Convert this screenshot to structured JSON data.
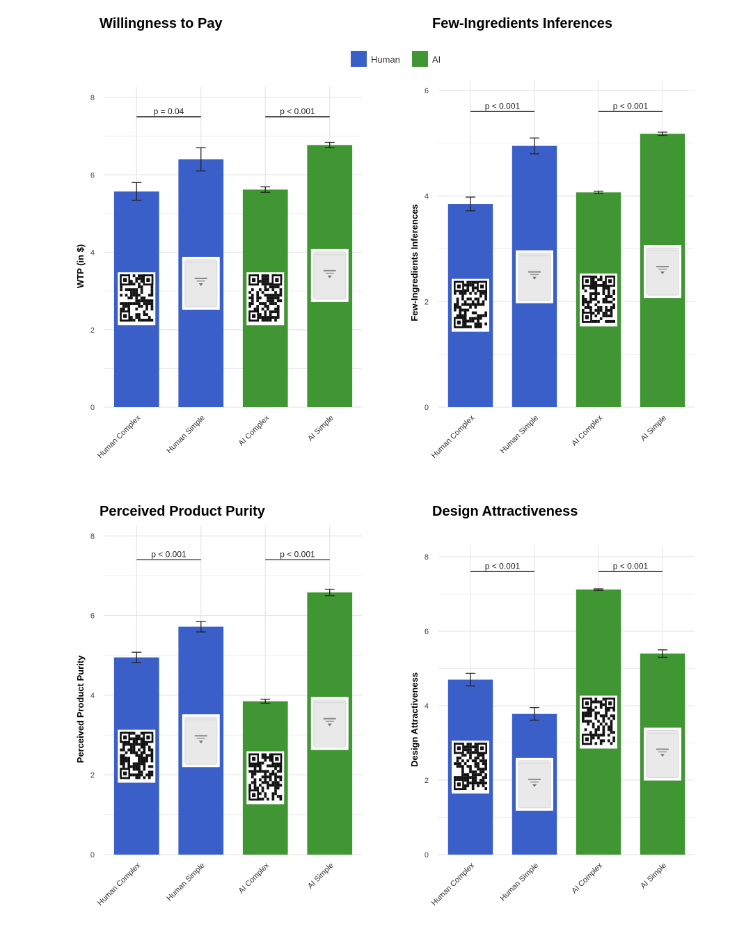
{
  "colors": {
    "human": "#3b5fc8",
    "ai": "#3f9632",
    "grid": "#e6e6e6",
    "errorbar": "#222222",
    "thumb_bg": "#ffffff",
    "pouch": "#e9e9e9"
  },
  "legend": {
    "entries": [
      {
        "name": "Human",
        "color_key": "human"
      },
      {
        "name": "AI",
        "color_key": "ai"
      }
    ]
  },
  "chart_data": [
    {
      "type": "bar",
      "title": "Willingness to Pay",
      "ylabel": "WTP (in $)",
      "xlabel": "",
      "ylim": [
        0,
        8
      ],
      "yticks": [
        0,
        2,
        4,
        6,
        8
      ],
      "categories": [
        "Human Complex",
        "Human Simple",
        "AI Complex",
        "AI Simple"
      ],
      "groups": [
        "Human",
        "Human",
        "AI",
        "AI"
      ],
      "values": [
        5.57,
        6.4,
        5.62,
        6.77
      ],
      "errors": [
        0.23,
        0.3,
        0.07,
        0.07
      ],
      "image_types": [
        "qr",
        "pouch",
        "qr",
        "pouch"
      ],
      "image_centers": [
        2.8,
        3.2,
        2.8,
        3.4
      ],
      "comparisons": [
        {
          "from": 0,
          "to": 1,
          "label": "p = 0.04",
          "y": 7.5
        },
        {
          "from": 2,
          "to": 3,
          "label": "p < 0.001",
          "y": 7.5
        }
      ]
    },
    {
      "type": "bar",
      "title": "Few-Ingredients Inferences",
      "ylabel": "Few-Ingredients Inferences",
      "xlabel": "",
      "ylim": [
        0,
        6
      ],
      "yticks": [
        0,
        2,
        4,
        6
      ],
      "categories": [
        "Human Complex",
        "Human Simple",
        "AI Complex",
        "AI Simple"
      ],
      "groups": [
        "Human",
        "Human",
        "AI",
        "AI"
      ],
      "values": [
        3.85,
        4.95,
        4.07,
        5.18
      ],
      "errors": [
        0.13,
        0.15,
        0.02,
        0.03
      ],
      "image_types": [
        "qr",
        "pouch",
        "qr",
        "pouch"
      ],
      "image_centers": [
        1.93,
        2.47,
        2.03,
        2.57
      ],
      "comparisons": [
        {
          "from": 0,
          "to": 1,
          "label": "p < 0.001",
          "y": 5.6
        },
        {
          "from": 2,
          "to": 3,
          "label": "p < 0.001",
          "y": 5.6
        }
      ]
    },
    {
      "type": "bar",
      "title": "Perceived Product Purity",
      "ylabel": "Perceived Product Purity",
      "xlabel": "",
      "ylim": [
        0,
        8
      ],
      "yticks": [
        0,
        2,
        4,
        6,
        8
      ],
      "categories": [
        "Human Complex",
        "Human Simple",
        "AI Complex",
        "AI Simple"
      ],
      "groups": [
        "Human",
        "Human",
        "AI",
        "AI"
      ],
      "values": [
        4.95,
        5.72,
        3.85,
        6.58
      ],
      "errors": [
        0.13,
        0.13,
        0.05,
        0.08
      ],
      "image_types": [
        "qr",
        "pouch",
        "qr",
        "pouch"
      ],
      "image_centers": [
        2.47,
        2.86,
        1.93,
        3.29
      ],
      "comparisons": [
        {
          "from": 0,
          "to": 1,
          "label": "p < 0.001",
          "y": 7.4
        },
        {
          "from": 2,
          "to": 3,
          "label": "p < 0.001",
          "y": 7.4
        }
      ]
    },
    {
      "type": "bar",
      "title": "Design Attractiveness",
      "ylabel": "Design Attractiveness",
      "xlabel": "",
      "ylim": [
        0,
        8
      ],
      "yticks": [
        0,
        2,
        4,
        6,
        8
      ],
      "categories": [
        "Human Complex",
        "Human Simple",
        "AI Complex",
        "AI Simple"
      ],
      "groups": [
        "Human",
        "Human",
        "AI",
        "AI"
      ],
      "values": [
        4.7,
        3.78,
        7.12,
        5.4
      ],
      "errors": [
        0.17,
        0.17,
        0.02,
        0.1
      ],
      "image_types": [
        "qr",
        "pouch",
        "qr",
        "pouch"
      ],
      "image_centers": [
        2.35,
        1.89,
        3.56,
        2.7
      ],
      "comparisons": [
        {
          "from": 0,
          "to": 1,
          "label": "p < 0.001",
          "y": 7.6
        },
        {
          "from": 2,
          "to": 3,
          "label": "p < 0.001",
          "y": 7.6
        }
      ]
    }
  ]
}
